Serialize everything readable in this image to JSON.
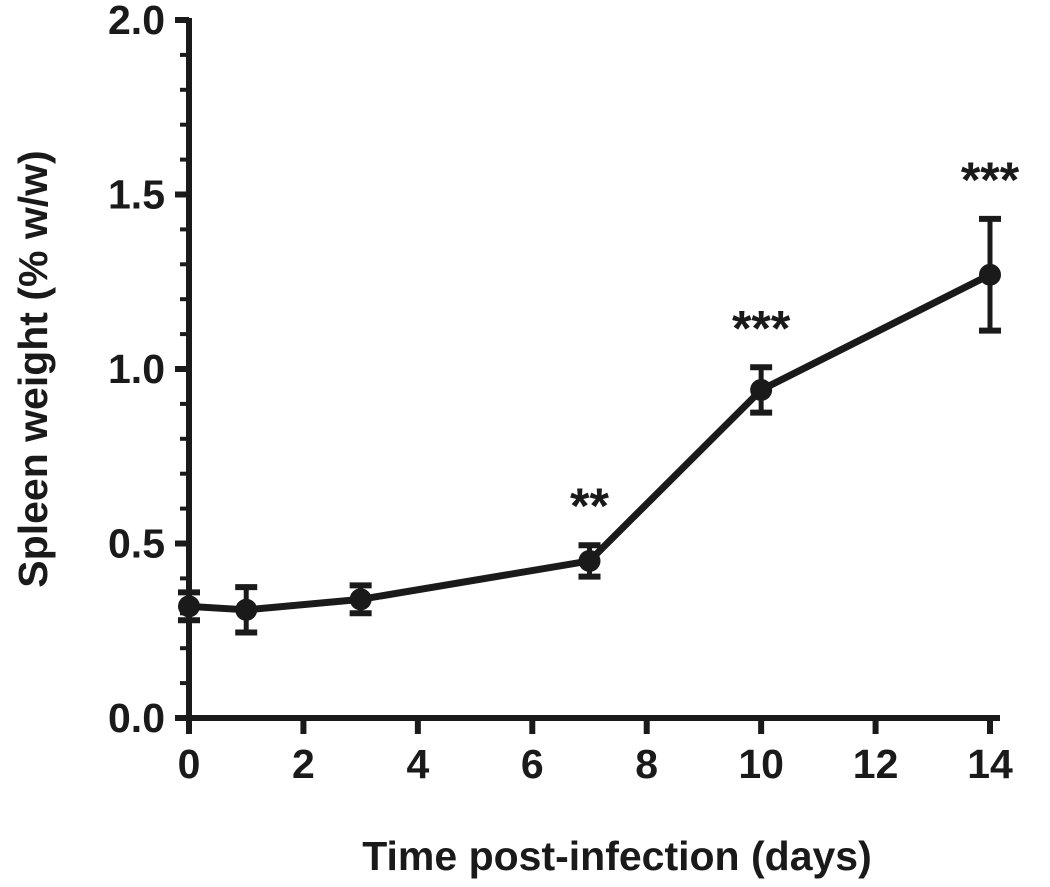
{
  "chart_data": {
    "type": "line",
    "title": "",
    "xlabel": "Time post-infection (days)",
    "ylabel": "Spleen weight (% w/w)",
    "xlim": [
      0,
      14
    ],
    "ylim": [
      0,
      2.0
    ],
    "x_ticks": [
      "0",
      "2",
      "4",
      "6",
      "8",
      "10",
      "12",
      "14"
    ],
    "y_ticks": [
      "0.0",
      "0.5",
      "1.0",
      "1.5",
      "2.0"
    ],
    "y_minor_tick_step": 0.1,
    "grid": false,
    "color": "#1a1a1a",
    "series": [
      {
        "x": [
          0,
          1,
          3,
          7,
          10,
          14
        ],
        "y": [
          0.32,
          0.31,
          0.34,
          0.45,
          0.94,
          1.27
        ],
        "error": [
          0.04,
          0.065,
          0.04,
          0.045,
          0.065,
          0.16
        ],
        "annotations": [
          "",
          "",
          "",
          "**",
          "***",
          "***"
        ]
      }
    ]
  }
}
